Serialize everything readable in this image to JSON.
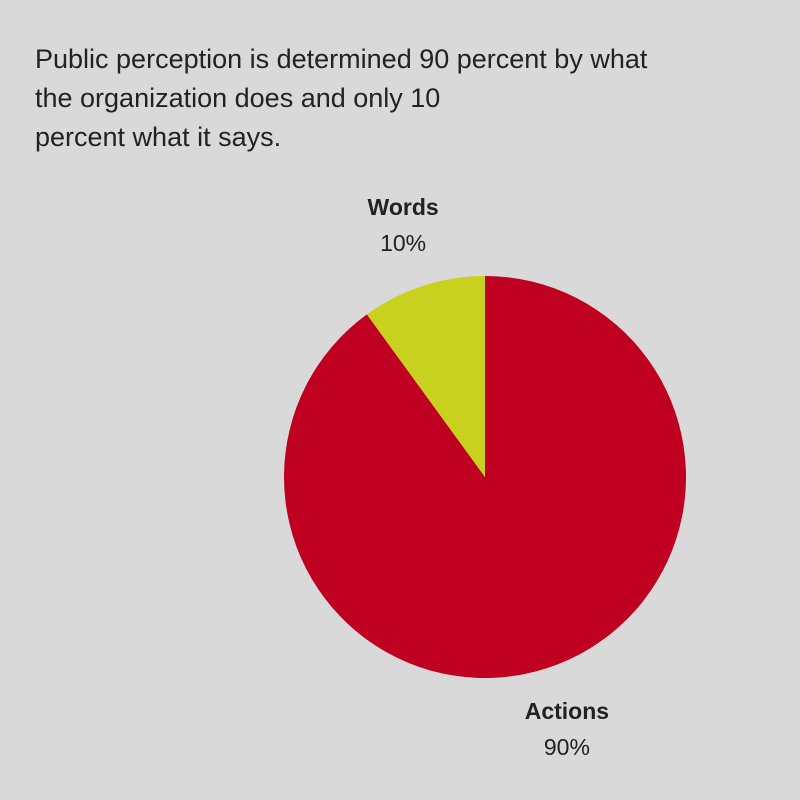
{
  "chart_data": {
    "type": "pie",
    "title": [
      "Public perception is determined 90 percent by what",
      "the organization does and only 10",
      "percent what it says."
    ],
    "categories": [
      "Actions",
      "Words"
    ],
    "values": [
      90,
      10
    ],
    "value_labels": [
      "90%",
      "10%"
    ],
    "colors": [
      "#c00020",
      "#c8d21e"
    ]
  }
}
